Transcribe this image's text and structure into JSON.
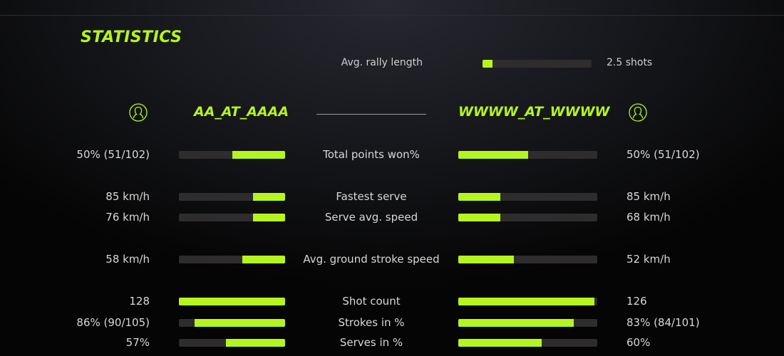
{
  "title": "STATISTICS",
  "accent_color": "#b5f51e",
  "rally": {
    "label": "Avg. rally length",
    "value": "2.5 shots",
    "fraction": 0.09
  },
  "players": {
    "left": {
      "name": "AA_AT_AAAA",
      "icon": "user-icon"
    },
    "right": {
      "name": "WWWW_AT_WWWW",
      "icon": "user-icon"
    }
  },
  "stats": [
    {
      "label": "Total points won%",
      "left": "50% (51/102)",
      "right": "50% (51/102)",
      "left_fraction": 0.5,
      "right_fraction": 0.5
    },
    {
      "label": "Fastest serve",
      "left": "85 km/h",
      "right": "85 km/h",
      "left_fraction": 0.3,
      "right_fraction": 0.3
    },
    {
      "label": "Serve avg. speed",
      "left": "76 km/h",
      "right": "68 km/h",
      "left_fraction": 0.3,
      "right_fraction": 0.3
    },
    {
      "label": "Avg. ground stroke speed",
      "left": "58 km/h",
      "right": "52 km/h",
      "left_fraction": 0.4,
      "right_fraction": 0.4
    },
    {
      "label": "Shot count",
      "left": "128",
      "right": "126",
      "left_fraction": 1.0,
      "right_fraction": 0.98
    },
    {
      "label": "Strokes in %",
      "left": "86% (90/105)",
      "right": "83% (84/101)",
      "left_fraction": 0.85,
      "right_fraction": 0.83
    },
    {
      "label": "Serves in %",
      "left": "57%",
      "right": "60%",
      "left_fraction": 0.56,
      "right_fraction": 0.6
    }
  ]
}
